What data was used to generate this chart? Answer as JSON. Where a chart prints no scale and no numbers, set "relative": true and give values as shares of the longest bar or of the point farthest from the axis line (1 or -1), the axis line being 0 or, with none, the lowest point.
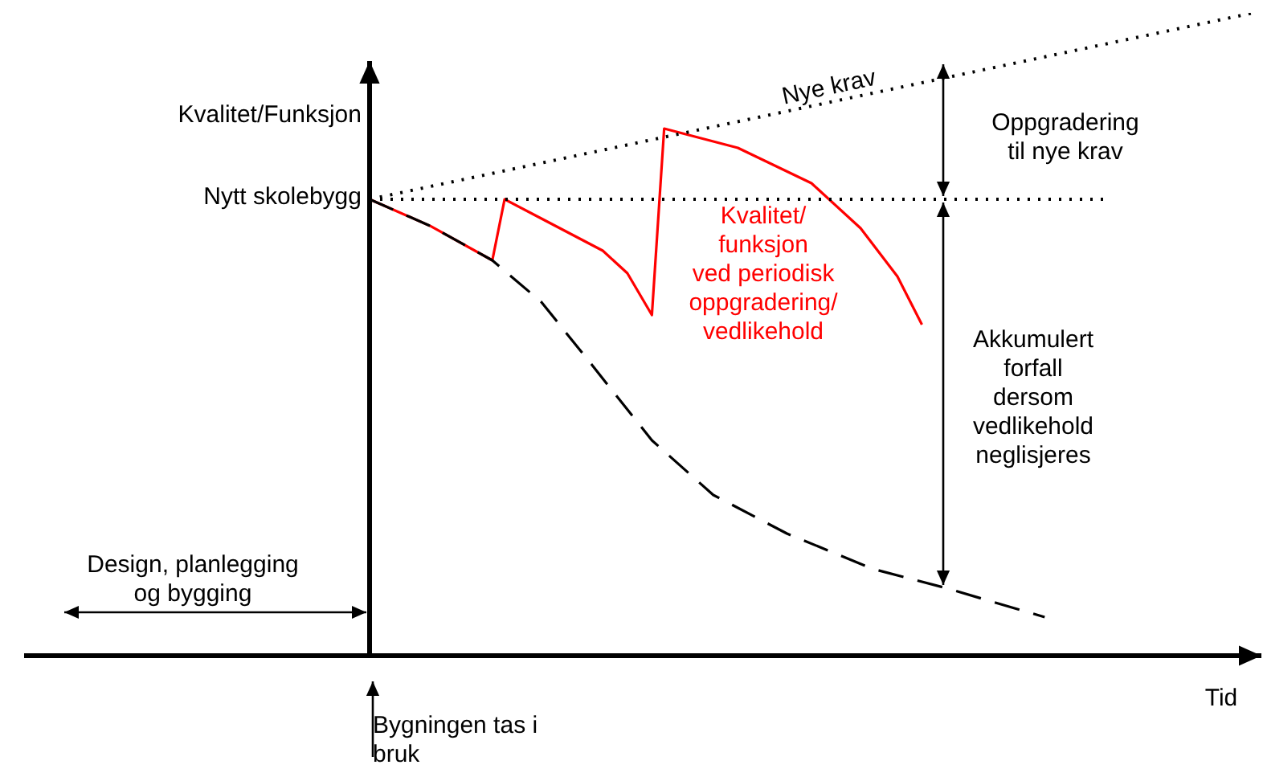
{
  "chart_data": {
    "type": "line",
    "relative": true,
    "ylabel": "Kvalitet/Funksjon",
    "xlabel": "Tid",
    "legend": false,
    "marker": "none",
    "categories": [
      null,
      null,
      null,
      null,
      null,
      null,
      null,
      null,
      null,
      null,
      null,
      null,
      null,
      null,
      null,
      null,
      null,
      null,
      null,
      null,
      null,
      null,
      null,
      null,
      null,
      null,
      null,
      null,
      null,
      null,
      null,
      null,
      null,
      null,
      null,
      null,
      null,
      null,
      null,
      null,
      null,
      null,
      null,
      null,
      null,
      null,
      null,
      null,
      null,
      null,
      null,
      null,
      null,
      null,
      null,
      null,
      null,
      null,
      null,
      null,
      null,
      null,
      null,
      null,
      null,
      null,
      null,
      null,
      null,
      null,
      null,
      null,
      null
    ],
    "series": [
      {
        "name": "Nye krav",
        "color": "#000000",
        "line_style": "dotted",
        "values": [
          0.71,
          null,
          null,
          null,
          null,
          null,
          null,
          null,
          null,
          null,
          null,
          null,
          null,
          null,
          null,
          null,
          null,
          null,
          null,
          null,
          null,
          null,
          null,
          null,
          null,
          null,
          null,
          null,
          null,
          null,
          null,
          null,
          null,
          null,
          null,
          null,
          null,
          null,
          null,
          null,
          null,
          null,
          null,
          null,
          null,
          null,
          null,
          null,
          null,
          null,
          null,
          null,
          null,
          null,
          null,
          null,
          null,
          null,
          null,
          null,
          null,
          null,
          null,
          null,
          null,
          null,
          null,
          null,
          null,
          null,
          null,
          null,
          1.0
        ]
      },
      {
        "color": "#000000",
        "line_style": "dotted",
        "values": [
          0.71,
          null,
          null,
          null,
          null,
          null,
          null,
          null,
          null,
          null,
          null,
          null,
          null,
          null,
          null,
          null,
          null,
          null,
          null,
          null,
          null,
          null,
          null,
          null,
          null,
          null,
          null,
          null,
          null,
          null,
          null,
          null,
          null,
          null,
          null,
          null,
          null,
          null,
          null,
          null,
          null,
          null,
          null,
          null,
          null,
          null,
          null,
          null,
          null,
          null,
          null,
          null,
          null,
          null,
          null,
          null,
          null,
          null,
          null,
          null,
          0.71,
          null,
          null,
          null,
          null,
          null,
          null,
          null,
          null,
          null,
          null,
          null,
          null
        ]
      },
      {
        "color": "#000000",
        "line_style": "dashed",
        "values": [
          0.71,
          null,
          null,
          null,
          null,
          0.668,
          null,
          null,
          null,
          null,
          0.615,
          null,
          null,
          null,
          0.55,
          null,
          null,
          null,
          0.455,
          null,
          null,
          null,
          null,
          0.335,
          null,
          null,
          null,
          null,
          0.25,
          null,
          null,
          null,
          null,
          null,
          0.19,
          null,
          null,
          null,
          null,
          null,
          null,
          0.135,
          null,
          null,
          null,
          null,
          null,
          0.105,
          null,
          null,
          null,
          null,
          null,
          null,
          null,
          0.06,
          null,
          null,
          null,
          null,
          null,
          null,
          null,
          null,
          null,
          null,
          null,
          null,
          null,
          null,
          null,
          null,
          null
        ]
      },
      {
        "name": "Kvalitet/\nfunksjon\nved periodisk\noppgradering/\nvedlikehold",
        "color": "#ff0000",
        "line_style": "solid",
        "values": [
          0.71,
          null,
          null,
          null,
          null,
          0.668,
          null,
          null,
          null,
          null,
          0.615,
          0.71,
          null,
          null,
          0.68,
          null,
          null,
          null,
          null,
          0.63,
          null,
          0.595,
          null,
          0.53,
          0.82,
          null,
          null,
          null,
          null,
          null,
          0.79,
          null,
          null,
          null,
          null,
          null,
          0.735,
          null,
          null,
          null,
          0.665,
          null,
          null,
          0.59,
          null,
          0.515,
          null,
          null,
          null,
          null,
          null,
          null,
          null,
          null,
          null,
          null,
          null,
          null,
          null,
          null,
          null,
          null,
          null,
          null,
          null,
          null,
          null,
          null,
          null,
          null,
          null,
          null,
          null
        ]
      }
    ],
    "annotations": [
      "Nytt skolebygg",
      "Oppgradering\ntil nye krav",
      "Akkumulert\nforfall\ndersom\nvedlikehold\nneglisjeres",
      "Design, planlegging\nog bygging",
      "Bygningen tas i\nbruk"
    ]
  }
}
